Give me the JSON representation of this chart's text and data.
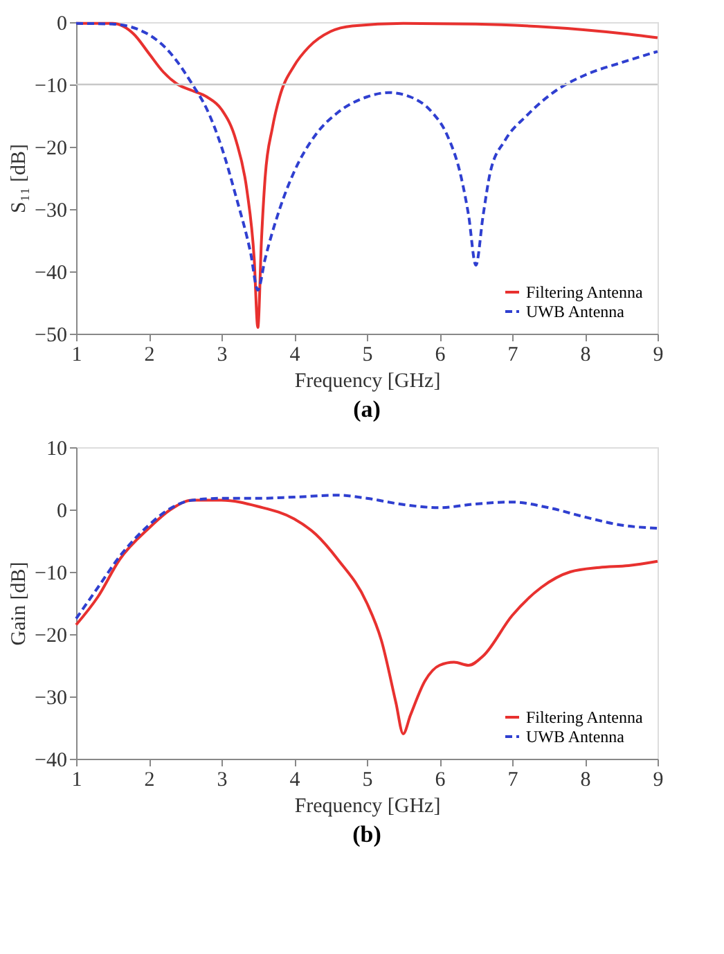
{
  "chart_data": [
    {
      "type": "line",
      "title": "(a)",
      "xlabel": "Frequency [GHz]",
      "ylabel": "S₁₁ [dB]",
      "xlim": [
        1,
        9
      ],
      "ylim": [
        -50,
        0
      ],
      "xticks": [
        1,
        2,
        3,
        4,
        5,
        6,
        7,
        8,
        9
      ],
      "yticks": [
        -50,
        -40,
        -30,
        -20,
        -10,
        0
      ],
      "grid": false,
      "legend": "bottom right",
      "ref_lines": [
        {
          "axis": "y",
          "value": -10,
          "color": "#c8c8c8"
        }
      ],
      "series": [
        {
          "name": "Filtering Antenna",
          "color": "#e8312f",
          "line_style": "solid",
          "x": [
            1,
            1.5,
            1.8,
            2.0,
            2.2,
            2.4,
            2.6,
            2.8,
            3.0,
            3.2,
            3.35,
            3.45,
            3.5,
            3.55,
            3.6,
            3.7,
            3.8,
            4.0,
            4.2,
            4.5,
            4.8,
            5.5,
            6.5,
            7.5,
            8.5,
            9
          ],
          "values": [
            -0.2,
            -0.2,
            -2,
            -5,
            -8,
            -10,
            -11,
            -12,
            -14,
            -19,
            -27,
            -38,
            -49,
            -35,
            -25,
            -17,
            -12,
            -7,
            -4,
            -1.5,
            -0.6,
            -0.2,
            -0.3,
            -0.8,
            -1.8,
            -2.5
          ]
        },
        {
          "name": "UWB Antenna",
          "color": "#2f3fd0",
          "line_style": "dashed",
          "x": [
            1,
            1.5,
            2.0,
            2.3,
            2.6,
            2.8,
            3.0,
            3.2,
            3.4,
            3.5,
            3.6,
            3.8,
            4.0,
            4.3,
            4.6,
            5.0,
            5.3,
            5.6,
            5.9,
            6.1,
            6.3,
            6.4,
            6.5,
            6.6,
            6.7,
            6.9,
            7.2,
            7.6,
            8.0,
            8.5,
            9
          ],
          "values": [
            -0.2,
            -0.3,
            -2,
            -5,
            -10,
            -14,
            -20,
            -28,
            -37,
            -43,
            -38,
            -30,
            -24,
            -18,
            -14.5,
            -12,
            -11.3,
            -12,
            -14.5,
            -18,
            -25,
            -31,
            -39,
            -31,
            -24,
            -19,
            -15,
            -11,
            -8.5,
            -6.5,
            -4.7
          ]
        }
      ]
    },
    {
      "type": "line",
      "title": "(b)",
      "xlabel": "Frequency [GHz]",
      "ylabel": "Gain [dB]",
      "xlim": [
        1,
        9
      ],
      "ylim": [
        -40,
        10
      ],
      "xticks": [
        1,
        2,
        3,
        4,
        5,
        6,
        7,
        8,
        9
      ],
      "yticks": [
        -40,
        -30,
        -20,
        -10,
        0,
        10
      ],
      "grid": false,
      "legend": "bottom right",
      "series": [
        {
          "name": "Filtering Antenna",
          "color": "#e8312f",
          "line_style": "solid",
          "x": [
            1,
            1.3,
            1.6,
            2.0,
            2.3,
            2.6,
            3.0,
            3.5,
            4.0,
            4.3,
            4.6,
            5.0,
            5.2,
            5.4,
            5.5,
            5.6,
            5.8,
            6.0,
            6.2,
            6.4,
            6.6,
            7.0,
            7.4,
            7.8,
            8.2,
            8.6,
            9
          ],
          "values": [
            -18.5,
            -14,
            -8,
            -3,
            0,
            1.5,
            1.5,
            0.5,
            -1.5,
            -4,
            -8,
            -15,
            -21,
            -31,
            -36,
            -33,
            -27.5,
            -25,
            -24.5,
            -25,
            -23.5,
            -17,
            -12.5,
            -10,
            -9.3,
            -9,
            -8.3
          ]
        },
        {
          "name": "UWB Antenna",
          "color": "#2f3fd0",
          "line_style": "dashed",
          "x": [
            1,
            1.3,
            1.6,
            2.0,
            2.3,
            2.6,
            3.0,
            3.5,
            4.0,
            4.6,
            5.0,
            5.5,
            6.0,
            6.5,
            7.0,
            7.5,
            8.0,
            8.5,
            9
          ],
          "values": [
            -17.5,
            -12.5,
            -7.5,
            -2.5,
            0.2,
            1.5,
            1.8,
            1.8,
            2,
            2.3,
            1.8,
            0.8,
            0.3,
            0.9,
            1.2,
            0.3,
            -1.2,
            -2.5,
            -3
          ]
        }
      ]
    }
  ]
}
